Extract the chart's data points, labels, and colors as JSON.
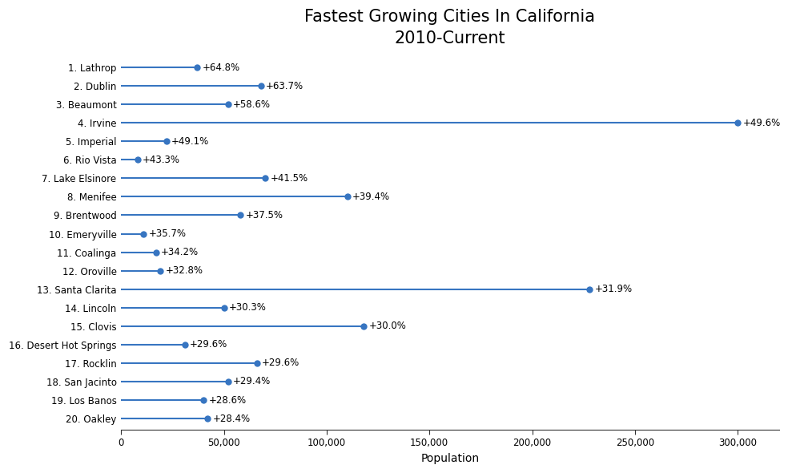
{
  "title": "Fastest Growing Cities In California\n2010-Current",
  "xlabel": "Population",
  "cities": [
    "1. Lathrop",
    "2. Dublin",
    "3. Beaumont",
    "4. Irvine",
    "5. Imperial",
    "6. Rio Vista",
    "7. Lake Elsinore",
    "8. Menifee",
    "9. Brentwood",
    "10. Emeryville",
    "11. Coalinga",
    "12. Oroville",
    "13. Santa Clarita",
    "14. Lincoln",
    "15. Clovis",
    "16. Desert Hot Springs",
    "17. Rocklin",
    "18. San Jacinto",
    "19. Los Banos",
    "20. Oakley"
  ],
  "populations": [
    37000,
    68000,
    52000,
    300000,
    22000,
    8000,
    70000,
    110000,
    58000,
    11000,
    17000,
    19000,
    228000,
    50000,
    118000,
    31000,
    66000,
    52000,
    40000,
    42000
  ],
  "growth_rates": [
    "+64.8%",
    "+63.7%",
    "+58.6%",
    "+49.6%",
    "+49.1%",
    "+43.3%",
    "+41.5%",
    "+39.4%",
    "+37.5%",
    "+35.7%",
    "+34.2%",
    "+32.8%",
    "+31.9%",
    "+30.3%",
    "+30.0%",
    "+29.6%",
    "+29.6%",
    "+29.4%",
    "+28.6%",
    "+28.4%"
  ],
  "line_color": "#3775c1",
  "dot_color": "#3775c1",
  "dot_size": 6,
  "line_width": 1.5,
  "xlim": [
    0,
    320000
  ],
  "xticks": [
    0,
    50000,
    100000,
    150000,
    200000,
    250000,
    300000
  ],
  "title_fontsize": 15,
  "city_label_fontsize": 8.5,
  "rate_label_fontsize": 8.5,
  "axis_label_fontsize": 10,
  "tick_fontsize": 8.5,
  "background_color": "#ffffff",
  "figwidth": 9.89,
  "figheight": 5.9
}
